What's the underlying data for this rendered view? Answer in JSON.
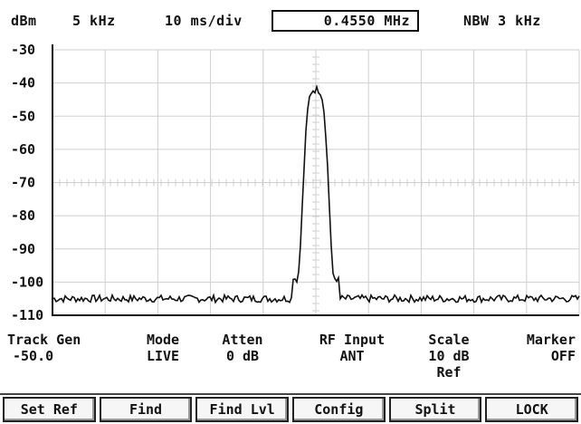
{
  "header": {
    "unit": "dBm",
    "span": "5 kHz",
    "sweep": "10 ms/div",
    "center_freq": "0.4550 MHz",
    "rbw": "NBW 3 kHz"
  },
  "y_axis": {
    "ticks": [
      "-30",
      "-40",
      "-50",
      "-60",
      "-70",
      "-80",
      "-90",
      "-100",
      "-110"
    ]
  },
  "trace": {
    "color": "#111111",
    "grid_color": "#cfcfcf",
    "peak_dbm": -42,
    "noise_floor_dbm": -105
  },
  "params": [
    {
      "label": "Track Gen",
      "value": "-50.0",
      "value2": ""
    },
    {
      "label": "Mode",
      "value": "LIVE",
      "value2": ""
    },
    {
      "label": "Atten",
      "value": "0 dB",
      "value2": ""
    },
    {
      "label": "RF Input",
      "value": "ANT",
      "value2": ""
    },
    {
      "label": "Scale",
      "value": "10 dB",
      "value2": "Ref"
    },
    {
      "label": "Marker",
      "value": "OFF",
      "value2": ""
    }
  ],
  "softkeys": [
    "Set Ref",
    "Find",
    "Find Lvl",
    "Config",
    "Split",
    "LOCK"
  ]
}
